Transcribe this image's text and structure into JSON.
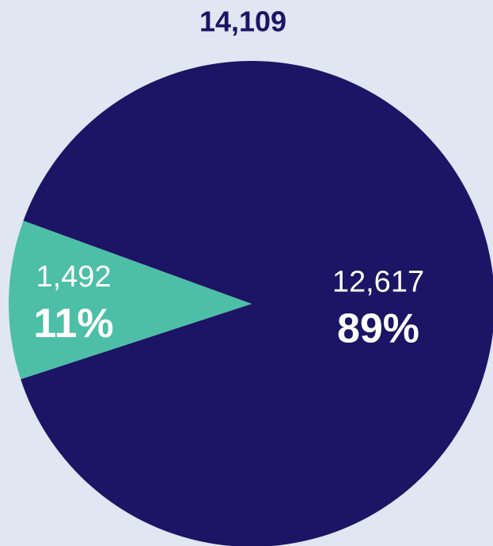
{
  "chart_data": {
    "type": "pie",
    "title": "14,109",
    "categories": [
      null,
      null
    ],
    "values": [
      12617,
      1492
    ],
    "value_labels": [
      "12,617",
      "1,492"
    ],
    "percents": [
      89,
      11
    ],
    "percent_labels": [
      "89%",
      "11%"
    ],
    "colors": [
      "#1c1464",
      "#4dbfa6"
    ]
  }
}
